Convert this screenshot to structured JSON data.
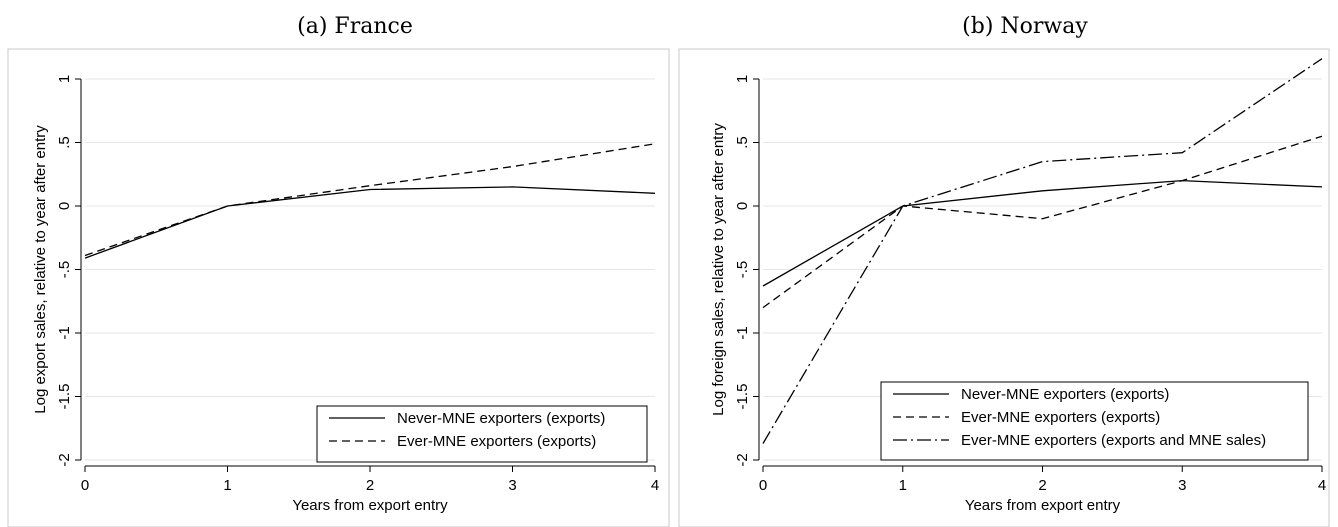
{
  "chart_data": [
    {
      "type": "line",
      "title": "(a) France",
      "xlabel": "Years from export entry",
      "ylabel": "Log export sales, relative to year after entry",
      "x": [
        0,
        1,
        2,
        3,
        4
      ],
      "xlim": [
        0,
        4
      ],
      "ylim": [
        -2,
        1
      ],
      "xticks": [
        "0",
        "1",
        "2",
        "3",
        "4"
      ],
      "yticks": [
        "-2",
        "-1.5",
        "-1",
        "-.5",
        "0",
        ".5",
        "1"
      ],
      "yticks_values": [
        -2,
        -1.5,
        -1,
        -0.5,
        0,
        0.5,
        1
      ],
      "grid": true,
      "legend_position": "bottom-right",
      "series": [
        {
          "name": "Never-MNE exporters (exports)",
          "style": "solid",
          "values": [
            -0.41,
            0.0,
            0.13,
            0.15,
            0.1
          ]
        },
        {
          "name": "Ever-MNE exporters (exports)",
          "style": "dashed",
          "values": [
            -0.39,
            0.0,
            0.16,
            0.31,
            0.49
          ]
        }
      ]
    },
    {
      "type": "line",
      "title": "(b) Norway",
      "xlabel": "Years from export entry",
      "ylabel": "Log foreign sales, relative to year after entry",
      "x": [
        0,
        1,
        2,
        3,
        4
      ],
      "xlim": [
        0,
        4
      ],
      "ylim": [
        -2,
        1
      ],
      "xticks": [
        "0",
        "1",
        "2",
        "3",
        "4"
      ],
      "yticks": [
        "-2",
        "-1.5",
        "-1",
        "-.5",
        "0",
        ".5",
        "1"
      ],
      "yticks_values": [
        -2,
        -1.5,
        -1,
        -0.5,
        0,
        0.5,
        1
      ],
      "grid": true,
      "legend_position": "bottom-right",
      "series": [
        {
          "name": "Never-MNE exporters (exports)",
          "style": "solid",
          "values": [
            -0.63,
            0.0,
            0.12,
            0.2,
            0.15
          ]
        },
        {
          "name": "Ever-MNE exporters (exports)",
          "style": "dashed",
          "values": [
            -0.8,
            0.0,
            -0.1,
            0.2,
            0.55
          ]
        },
        {
          "name": "Ever-MNE exporters (exports and MNE sales)",
          "style": "dashdot",
          "values": [
            -1.87,
            0.0,
            0.35,
            0.42,
            1.16
          ]
        }
      ]
    }
  ]
}
